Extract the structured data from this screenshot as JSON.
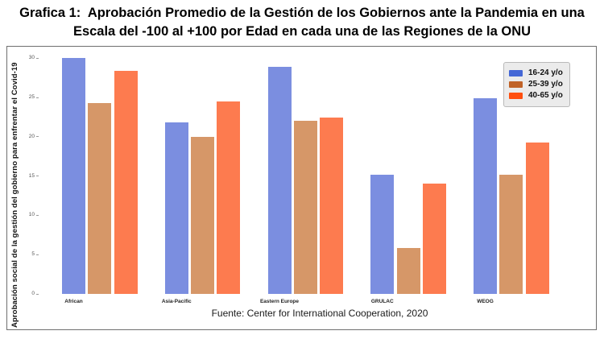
{
  "header": {
    "title_line1": "Grafica 1:  Aprobación Promedio de la Gestión de los Gobiernos ante la Pandemia en una",
    "title_line2": "Escala del -100 al +100 por Edad en cada una de las Regiones de la ONU"
  },
  "footer": {
    "source": "Fuente: Center for International Cooperation, 2020"
  },
  "chart_data": {
    "type": "bar",
    "title": "Aprobación Promedio de la Gestión de los Gobiernos ante la Pandemia en una Escala del -100 al +100 por Edad en cada una de las Regiones de la ONU",
    "categories": [
      "African",
      "Asia-Pacific",
      "Eastern Europe",
      "GRULAC",
      "WEOG"
    ],
    "series": [
      {
        "name": "16-24 y/o",
        "bar_color": "#7b8ee0",
        "legend_color": "#4467d6",
        "values": [
          30,
          21.8,
          28.9,
          15.2,
          24.9
        ]
      },
      {
        "name": "25-39 y/o",
        "bar_color": "#d69768",
        "legend_color": "#c06227",
        "values": [
          24.3,
          20,
          22,
          5.8,
          15.2
        ]
      },
      {
        "name": "40-65 y/o",
        "bar_color": "#fd7b4f",
        "legend_color": "#ff4f0f",
        "values": [
          28.4,
          24.5,
          22.4,
          14,
          19.3
        ]
      }
    ],
    "xlabel": "",
    "ylabel": "Aprobación social de la gestión del gobierno para enfrentar el Covid-19",
    "yticks": [
      0,
      5,
      10,
      15,
      20,
      25,
      30
    ],
    "ylim": [
      0,
      31
    ],
    "legend_position": "top-right",
    "grid": false
  }
}
